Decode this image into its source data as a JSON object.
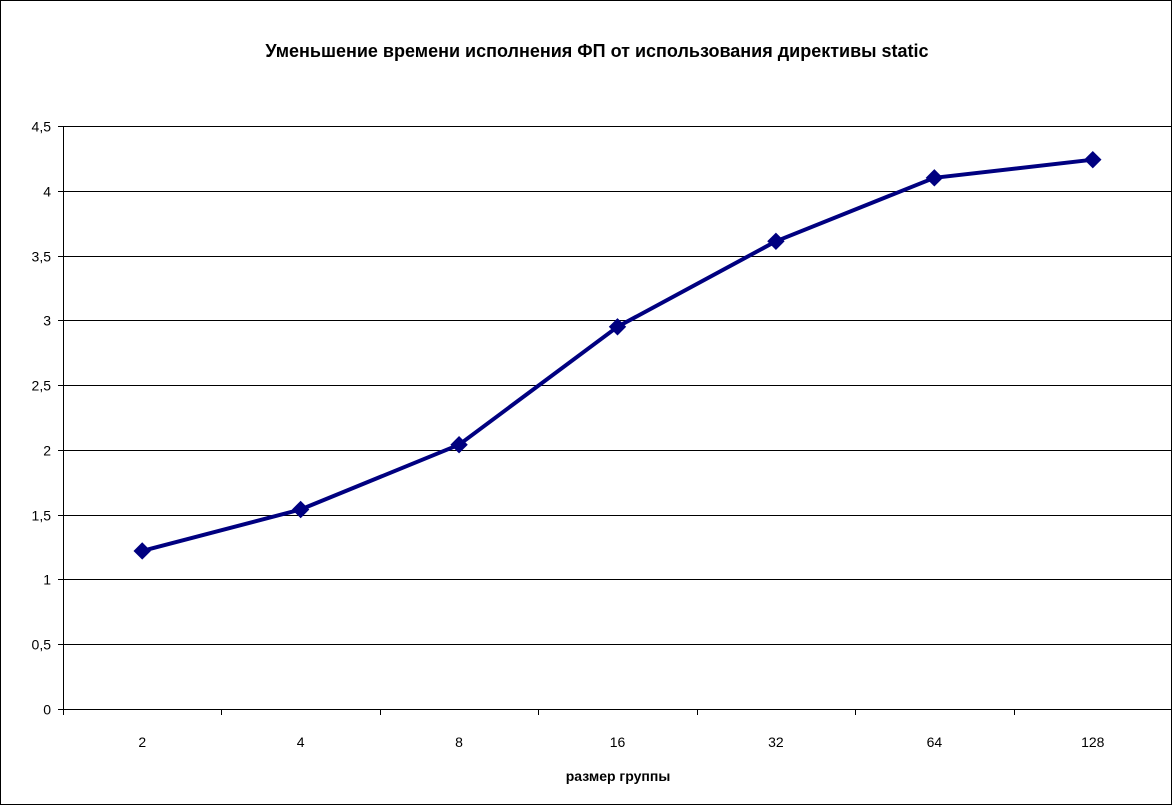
{
  "chart_data": {
    "type": "line",
    "title": "Уменьшение времени исполнения ФП от использования директивы static",
    "xlabel": "размер группы",
    "ylabel": "",
    "categories": [
      "2",
      "4",
      "8",
      "16",
      "32",
      "64",
      "128"
    ],
    "series": [
      {
        "values": [
          1.22,
          1.54,
          2.04,
          2.95,
          3.61,
          4.1,
          4.24
        ]
      }
    ],
    "ylim": [
      0,
      4.5
    ],
    "yticks": [
      "0",
      "0,5",
      "1",
      "1,5",
      "2",
      "2,5",
      "3",
      "3,5",
      "4",
      "4,5"
    ],
    "grid": true,
    "legend": "none",
    "colors": {
      "line": "#000080",
      "marker": "#000080",
      "grid": "#000000",
      "background": "#ffffff"
    },
    "marker": "diamond-icon"
  }
}
